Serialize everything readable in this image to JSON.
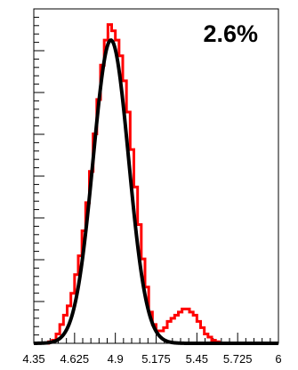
{
  "chart_data": {
    "type": "line",
    "title": "",
    "xlabel": "",
    "ylabel": "",
    "xlim": [
      4.35,
      6.0
    ],
    "ylim": [
      0,
      1.07
    ],
    "x_tick_labels": [
      "4.35",
      "4.625",
      "4.9",
      "5.175",
      "5.45",
      "5.725",
      "6"
    ],
    "x_tick_values": [
      4.35,
      4.625,
      4.9,
      5.175,
      5.45,
      5.725,
      6.0
    ],
    "y_tick_labels": [],
    "grid": false,
    "legend": "none",
    "annotation": "2.6%",
    "series": [
      {
        "style": "step-histogram",
        "color": "#ff0000",
        "bin_width": 0.025,
        "x": [
          4.35,
          4.375,
          4.4,
          4.425,
          4.45,
          4.475,
          4.5,
          4.525,
          4.55,
          4.575,
          4.6,
          4.625,
          4.65,
          4.675,
          4.7,
          4.725,
          4.75,
          4.775,
          4.8,
          4.825,
          4.85,
          4.875,
          4.9,
          4.925,
          4.95,
          4.975,
          5.0,
          5.025,
          5.05,
          5.075,
          5.1,
          5.125,
          5.15,
          5.175,
          5.2,
          5.225,
          5.25,
          5.275,
          5.3,
          5.325,
          5.35,
          5.375,
          5.4,
          5.425,
          5.45,
          5.475,
          5.5,
          5.525,
          5.55,
          5.575,
          5.6,
          5.625,
          5.65,
          5.675,
          5.7,
          5.725,
          5.75,
          5.775,
          5.8,
          5.825,
          5.85,
          5.875,
          5.9,
          5.925,
          5.95,
          5.975
        ],
        "y": [
          0,
          0,
          0,
          0,
          0.005,
          0.01,
          0.03,
          0.06,
          0.09,
          0.12,
          0.16,
          0.22,
          0.28,
          0.36,
          0.45,
          0.55,
          0.67,
          0.78,
          0.89,
          0.97,
          1.02,
          1.0,
          0.97,
          0.92,
          0.84,
          0.74,
          0.62,
          0.5,
          0.38,
          0.27,
          0.18,
          0.1,
          0.06,
          0.04,
          0.04,
          0.05,
          0.07,
          0.08,
          0.09,
          0.1,
          0.11,
          0.11,
          0.1,
          0.09,
          0.07,
          0.05,
          0.03,
          0.02,
          0.01,
          0.005,
          0,
          0,
          0,
          0,
          0,
          0,
          0,
          0,
          0,
          0,
          0,
          0,
          0,
          0,
          0,
          0
        ]
      },
      {
        "style": "smooth-curve",
        "color": "#000000",
        "function": "gaussian",
        "amplitude": 0.97,
        "mean": 4.87,
        "sigma": 0.12,
        "x_range": [
          4.35,
          6.0
        ]
      }
    ]
  }
}
